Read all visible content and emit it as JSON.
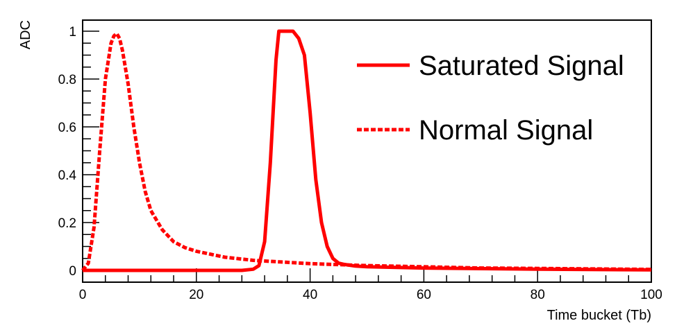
{
  "chart_data": {
    "type": "line",
    "title": "",
    "xlabel": "Time bucket (Tb)",
    "ylabel": "ADC",
    "xlim": [
      0,
      100
    ],
    "ylim": [
      0,
      1.04
    ],
    "grid": false,
    "legend_position": "top-right",
    "x_ticks": [
      "0",
      "20",
      "40",
      "60",
      "80",
      "100"
    ],
    "y_ticks": [
      "0",
      "0.2",
      "0.4",
      "0.6",
      "0.8",
      "1"
    ],
    "series": [
      {
        "name": "Saturated Signal",
        "style": "solid",
        "color": "#ff0000",
        "x": [
          0,
          20,
          28,
          30,
          31,
          32,
          33,
          34,
          34.5,
          35,
          36,
          37,
          38,
          39,
          40,
          41,
          42,
          43,
          44,
          45,
          46,
          48,
          50,
          60,
          80,
          100
        ],
        "y": [
          0,
          0,
          0,
          0.005,
          0.02,
          0.12,
          0.45,
          0.88,
          1.0,
          1.0,
          1.0,
          1.0,
          0.97,
          0.9,
          0.66,
          0.38,
          0.2,
          0.1,
          0.05,
          0.03,
          0.025,
          0.018,
          0.015,
          0.01,
          0.005,
          0.002
        ]
      },
      {
        "name": "Normal Signal",
        "style": "dashed",
        "color": "#ff0000",
        "x": [
          0,
          1,
          2,
          3,
          4,
          5,
          5.5,
          6,
          6.5,
          7,
          8,
          9,
          10,
          11,
          12,
          14,
          16,
          18,
          20,
          25,
          30,
          35,
          40,
          50,
          60,
          70,
          80,
          90,
          100
        ],
        "y": [
          0,
          0.03,
          0.18,
          0.5,
          0.8,
          0.95,
          0.98,
          0.99,
          0.97,
          0.92,
          0.78,
          0.6,
          0.45,
          0.33,
          0.25,
          0.17,
          0.12,
          0.095,
          0.08,
          0.055,
          0.042,
          0.035,
          0.028,
          0.02,
          0.015,
          0.01,
          0.008,
          0.006,
          0.004
        ]
      }
    ]
  }
}
